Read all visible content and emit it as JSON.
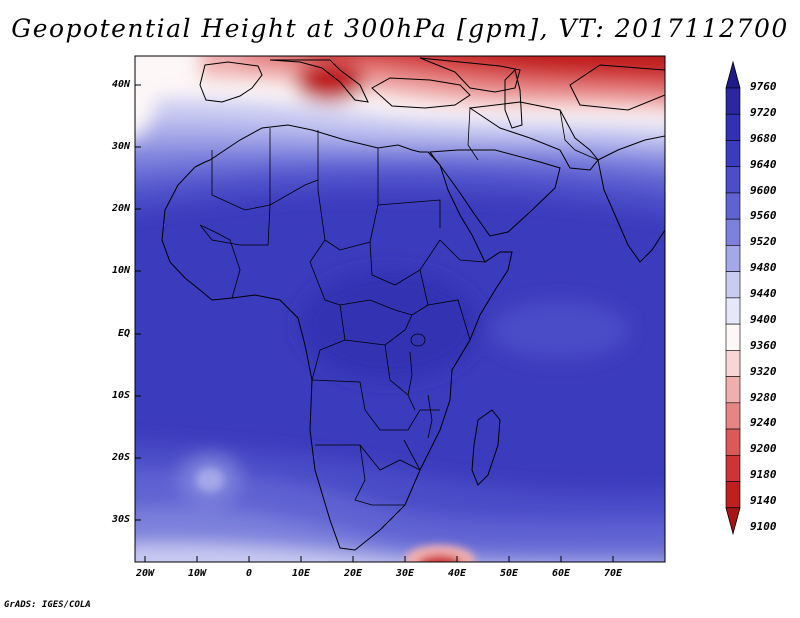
{
  "title": "Geopotential Height at 300hPa [gpm], VT: 2017112700",
  "credit": "GrADS: IGES/COLA",
  "lat_labels": [
    "40N",
    "30N",
    "20N",
    "10N",
    "EQ",
    "10S",
    "20S",
    "30S"
  ],
  "lon_labels": [
    "20W",
    "10W",
    "0",
    "10E",
    "20E",
    "30E",
    "40E",
    "50E",
    "60E",
    "70E"
  ],
  "colorbar": {
    "levels": [
      "9760",
      "9720",
      "9680",
      "9640",
      "9600",
      "9560",
      "9520",
      "9480",
      "9440",
      "9400",
      "9360",
      "9320",
      "9280",
      "9240",
      "9200",
      "9180",
      "9140",
      "9100"
    ],
    "colors": [
      "#1f1b8a",
      "#2a27a0",
      "#3331b3",
      "#3a3cbf",
      "#4b4ec8",
      "#5e62d2",
      "#7d80dc",
      "#a4a7e8",
      "#c9cbf2",
      "#e6e7fa",
      "#fdf7f7",
      "#f8d6d6",
      "#f0aeae",
      "#e78585",
      "#dc5959",
      "#cf3434",
      "#bf1f1f",
      "#a61414"
    ]
  }
}
